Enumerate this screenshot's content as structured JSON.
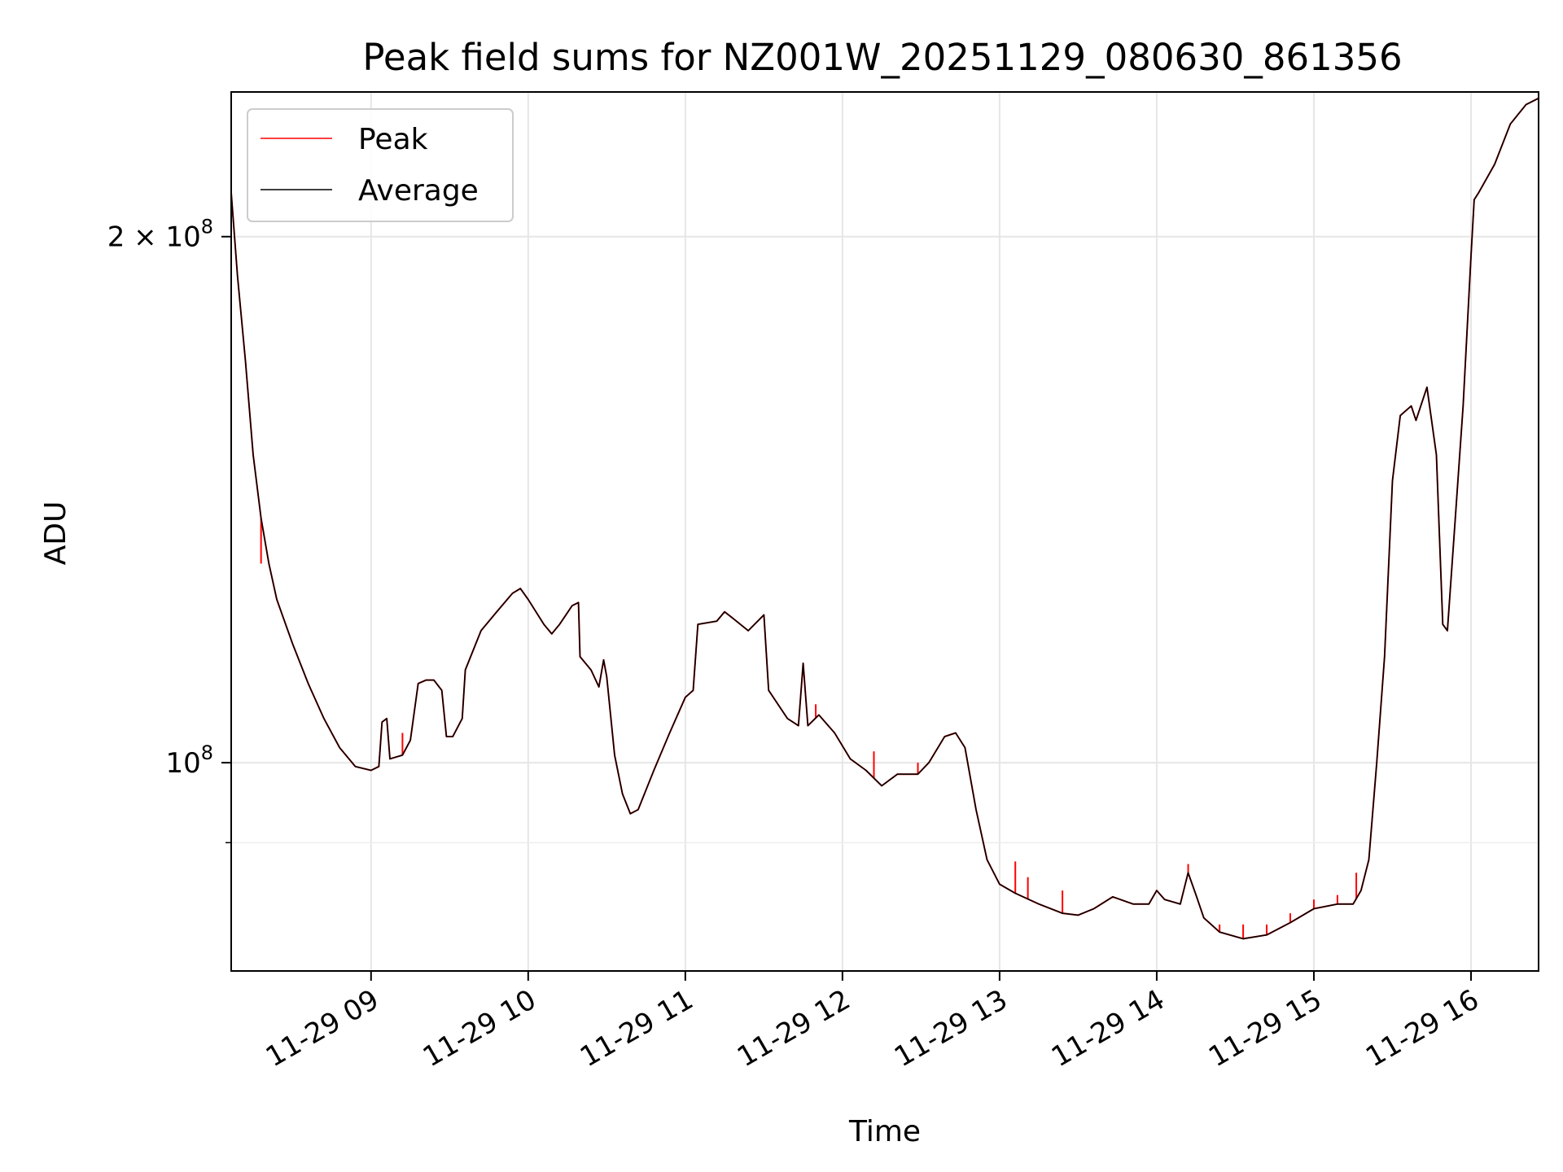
{
  "chart_data": {
    "type": "line",
    "title": "Peak field sums for NZ001W_20251129_080630_861356",
    "xlabel": "Time",
    "ylabel": "ADU",
    "x_unit": "hours (2025-11-29)",
    "xlim": [
      8.11,
      16.43
    ],
    "ylim": [
      76000000,
      242000000
    ],
    "y_scale": "log",
    "grid": true,
    "legend": {
      "placement": "top-left"
    },
    "x_ticks": [
      {
        "value": 9,
        "label": "11-29 09"
      },
      {
        "value": 10,
        "label": "11-29 10"
      },
      {
        "value": 11,
        "label": "11-29 11"
      },
      {
        "value": 12,
        "label": "11-29 12"
      },
      {
        "value": 13,
        "label": "11-29 13"
      },
      {
        "value": 14,
        "label": "11-29 14"
      },
      {
        "value": 15,
        "label": "11-29 15"
      },
      {
        "value": 16,
        "label": "11-29 16"
      }
    ],
    "y_ticks": [
      {
        "value": 100000000,
        "label_base": "10",
        "label_exp": "8",
        "label_mult": ""
      },
      {
        "value": 200000000,
        "label_base": "10",
        "label_exp": "8",
        "label_mult": "2 × "
      }
    ],
    "y_minor_ticks": [
      90000000
    ],
    "series": [
      {
        "name": "Peak",
        "color": "#ff0000",
        "spikes": [
          {
            "x": 8.3,
            "y": 130000000
          },
          {
            "x": 9.2,
            "y": 104000000
          },
          {
            "x": 11.83,
            "y": 108000000
          },
          {
            "x": 12.2,
            "y": 101500000
          },
          {
            "x": 12.48,
            "y": 100000000
          },
          {
            "x": 13.1,
            "y": 87800000
          },
          {
            "x": 13.18,
            "y": 86000000
          },
          {
            "x": 13.4,
            "y": 84500000
          },
          {
            "x": 14.2,
            "y": 87500000
          },
          {
            "x": 14.4,
            "y": 80800000
          },
          {
            "x": 14.55,
            "y": 80800000
          },
          {
            "x": 14.7,
            "y": 80800000
          },
          {
            "x": 14.85,
            "y": 82000000
          },
          {
            "x": 15.0,
            "y": 83500000
          },
          {
            "x": 15.15,
            "y": 84000000
          },
          {
            "x": 15.27,
            "y": 86500000
          }
        ]
      },
      {
        "name": "Average",
        "color": "#000000",
        "points": [
          [
            8.11,
            212000000
          ],
          [
            8.15,
            190000000
          ],
          [
            8.2,
            170000000
          ],
          [
            8.25,
            150000000
          ],
          [
            8.3,
            138000000
          ],
          [
            8.35,
            130000000
          ],
          [
            8.4,
            124000000
          ],
          [
            8.5,
            117000000
          ],
          [
            8.6,
            111000000
          ],
          [
            8.7,
            106000000
          ],
          [
            8.8,
            102000000
          ],
          [
            8.9,
            99500000
          ],
          [
            9.0,
            99000000
          ],
          [
            9.05,
            99500000
          ],
          [
            9.07,
            105500000
          ],
          [
            9.1,
            106000000
          ],
          [
            9.12,
            100500000
          ],
          [
            9.2,
            101000000
          ],
          [
            9.25,
            103000000
          ],
          [
            9.3,
            111000000
          ],
          [
            9.35,
            111500000
          ],
          [
            9.4,
            111500000
          ],
          [
            9.45,
            110000000
          ],
          [
            9.48,
            103500000
          ],
          [
            9.52,
            103500000
          ],
          [
            9.58,
            106000000
          ],
          [
            9.6,
            113000000
          ],
          [
            9.7,
            119000000
          ],
          [
            9.8,
            122000000
          ],
          [
            9.9,
            125000000
          ],
          [
            9.95,
            125800000
          ],
          [
            10.0,
            124000000
          ],
          [
            10.1,
            120000000
          ],
          [
            10.15,
            118500000
          ],
          [
            10.2,
            120000000
          ],
          [
            10.28,
            123000000
          ],
          [
            10.32,
            123500000
          ],
          [
            10.33,
            115000000
          ],
          [
            10.4,
            113000000
          ],
          [
            10.45,
            110500000
          ],
          [
            10.48,
            114500000
          ],
          [
            10.5,
            112000000
          ],
          [
            10.55,
            101000000
          ],
          [
            10.6,
            96000000
          ],
          [
            10.65,
            93500000
          ],
          [
            10.7,
            94000000
          ],
          [
            10.8,
            99000000
          ],
          [
            10.9,
            104000000
          ],
          [
            11.0,
            109000000
          ],
          [
            11.05,
            110000000
          ],
          [
            11.08,
            120000000
          ],
          [
            11.2,
            120500000
          ],
          [
            11.25,
            122000000
          ],
          [
            11.3,
            121000000
          ],
          [
            11.4,
            119000000
          ],
          [
            11.5,
            121500000
          ],
          [
            11.53,
            110000000
          ],
          [
            11.65,
            106000000
          ],
          [
            11.72,
            105000000
          ],
          [
            11.75,
            114000000
          ],
          [
            11.78,
            105000000
          ],
          [
            11.85,
            106500000
          ],
          [
            11.95,
            104000000
          ],
          [
            12.05,
            100500000
          ],
          [
            12.15,
            99000000
          ],
          [
            12.25,
            97000000
          ],
          [
            12.35,
            98500000
          ],
          [
            12.48,
            98500000
          ],
          [
            12.55,
            100000000
          ],
          [
            12.65,
            103500000
          ],
          [
            12.72,
            104000000
          ],
          [
            12.78,
            102000000
          ],
          [
            12.85,
            94000000
          ],
          [
            12.92,
            88000000
          ],
          [
            13.0,
            85200000
          ],
          [
            13.1,
            84200000
          ],
          [
            13.25,
            83000000
          ],
          [
            13.4,
            82000000
          ],
          [
            13.5,
            81800000
          ],
          [
            13.6,
            82500000
          ],
          [
            13.72,
            83800000
          ],
          [
            13.85,
            83000000
          ],
          [
            13.95,
            83000000
          ],
          [
            14.0,
            84500000
          ],
          [
            14.05,
            83500000
          ],
          [
            14.15,
            83000000
          ],
          [
            14.2,
            86500000
          ],
          [
            14.25,
            84000000
          ],
          [
            14.3,
            81500000
          ],
          [
            14.4,
            80000000
          ],
          [
            14.55,
            79300000
          ],
          [
            14.7,
            79700000
          ],
          [
            14.85,
            81000000
          ],
          [
            15.0,
            82500000
          ],
          [
            15.15,
            83000000
          ],
          [
            15.25,
            83000000
          ],
          [
            15.3,
            84500000
          ],
          [
            15.35,
            88000000
          ],
          [
            15.4,
            100000000
          ],
          [
            15.45,
            115000000
          ],
          [
            15.5,
            145000000
          ],
          [
            15.55,
            158000000
          ],
          [
            15.62,
            160000000
          ],
          [
            15.65,
            157000000
          ],
          [
            15.72,
            164000000
          ],
          [
            15.78,
            150000000
          ],
          [
            15.82,
            120000000
          ],
          [
            15.85,
            119000000
          ],
          [
            15.9,
            138000000
          ],
          [
            15.95,
            160000000
          ],
          [
            16.0,
            195000000
          ],
          [
            16.02,
            210000000
          ],
          [
            16.05,
            212000000
          ],
          [
            16.15,
            220000000
          ],
          [
            16.25,
            232000000
          ],
          [
            16.35,
            238000000
          ],
          [
            16.43,
            240000000
          ]
        ]
      }
    ]
  }
}
